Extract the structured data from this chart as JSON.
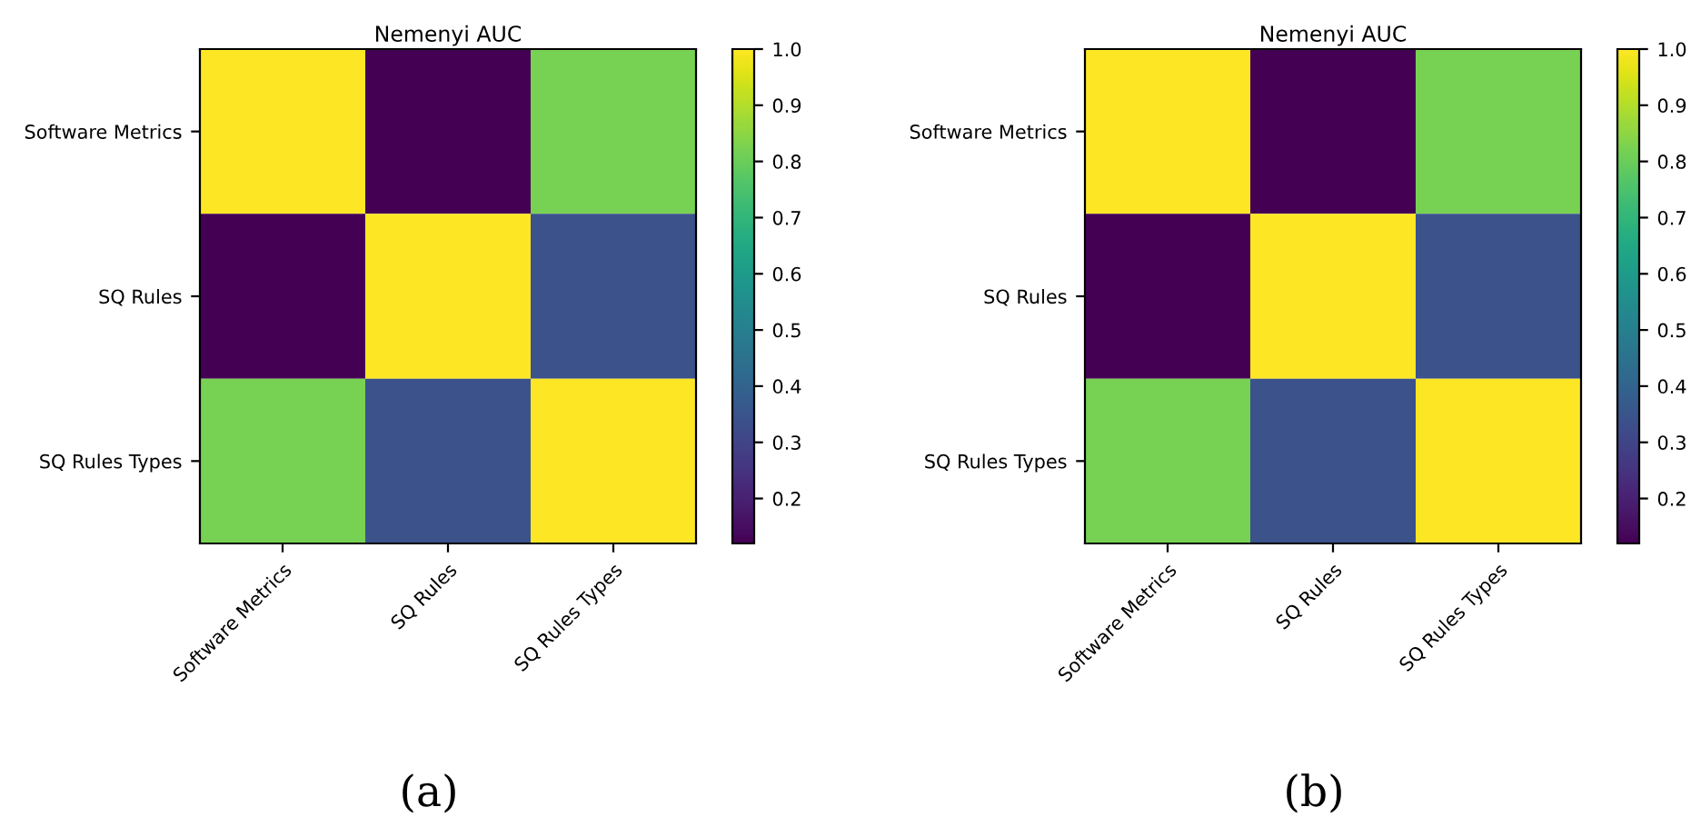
{
  "chart_data": [
    {
      "type": "heatmap",
      "title": "Nemenyi AUC",
      "categories": [
        "Software Metrics",
        "SQ Rules",
        "SQ Rules Types"
      ],
      "y_categories": [
        "Software Metrics",
        "SQ Rules",
        "SQ Rules Types"
      ],
      "cells": [
        [
          1.0,
          0.12,
          0.82
        ],
        [
          0.12,
          1.0,
          0.34
        ],
        [
          0.82,
          0.34,
          1.0
        ]
      ],
      "clim": [
        0.12,
        1.0
      ],
      "cticks": [
        0.2,
        0.3,
        0.4,
        0.5,
        0.6,
        0.7,
        0.8,
        0.9,
        {
          "value": 1,
          "label": "1.0"
        }
      ],
      "annotations": [
        "(a)"
      ]
    },
    {
      "type": "heatmap",
      "title": "Nemenyi AUC",
      "categories": [
        "Software Metrics",
        "SQ Rules",
        "SQ Rules Types"
      ],
      "y_categories": [
        "Software Metrics",
        "SQ Rules",
        "SQ Rules Types"
      ],
      "cells": [
        [
          1.0,
          0.12,
          0.82
        ],
        [
          0.12,
          1.0,
          0.34
        ],
        [
          0.82,
          0.34,
          1.0
        ]
      ],
      "clim": [
        0.12,
        1.0
      ],
      "cticks": [
        0.2,
        0.3,
        0.4,
        0.5,
        0.6,
        0.7,
        0.8,
        0.9,
        {
          "value": 1,
          "label": "1.0"
        }
      ],
      "annotations": [
        "(b)"
      ]
    }
  ]
}
